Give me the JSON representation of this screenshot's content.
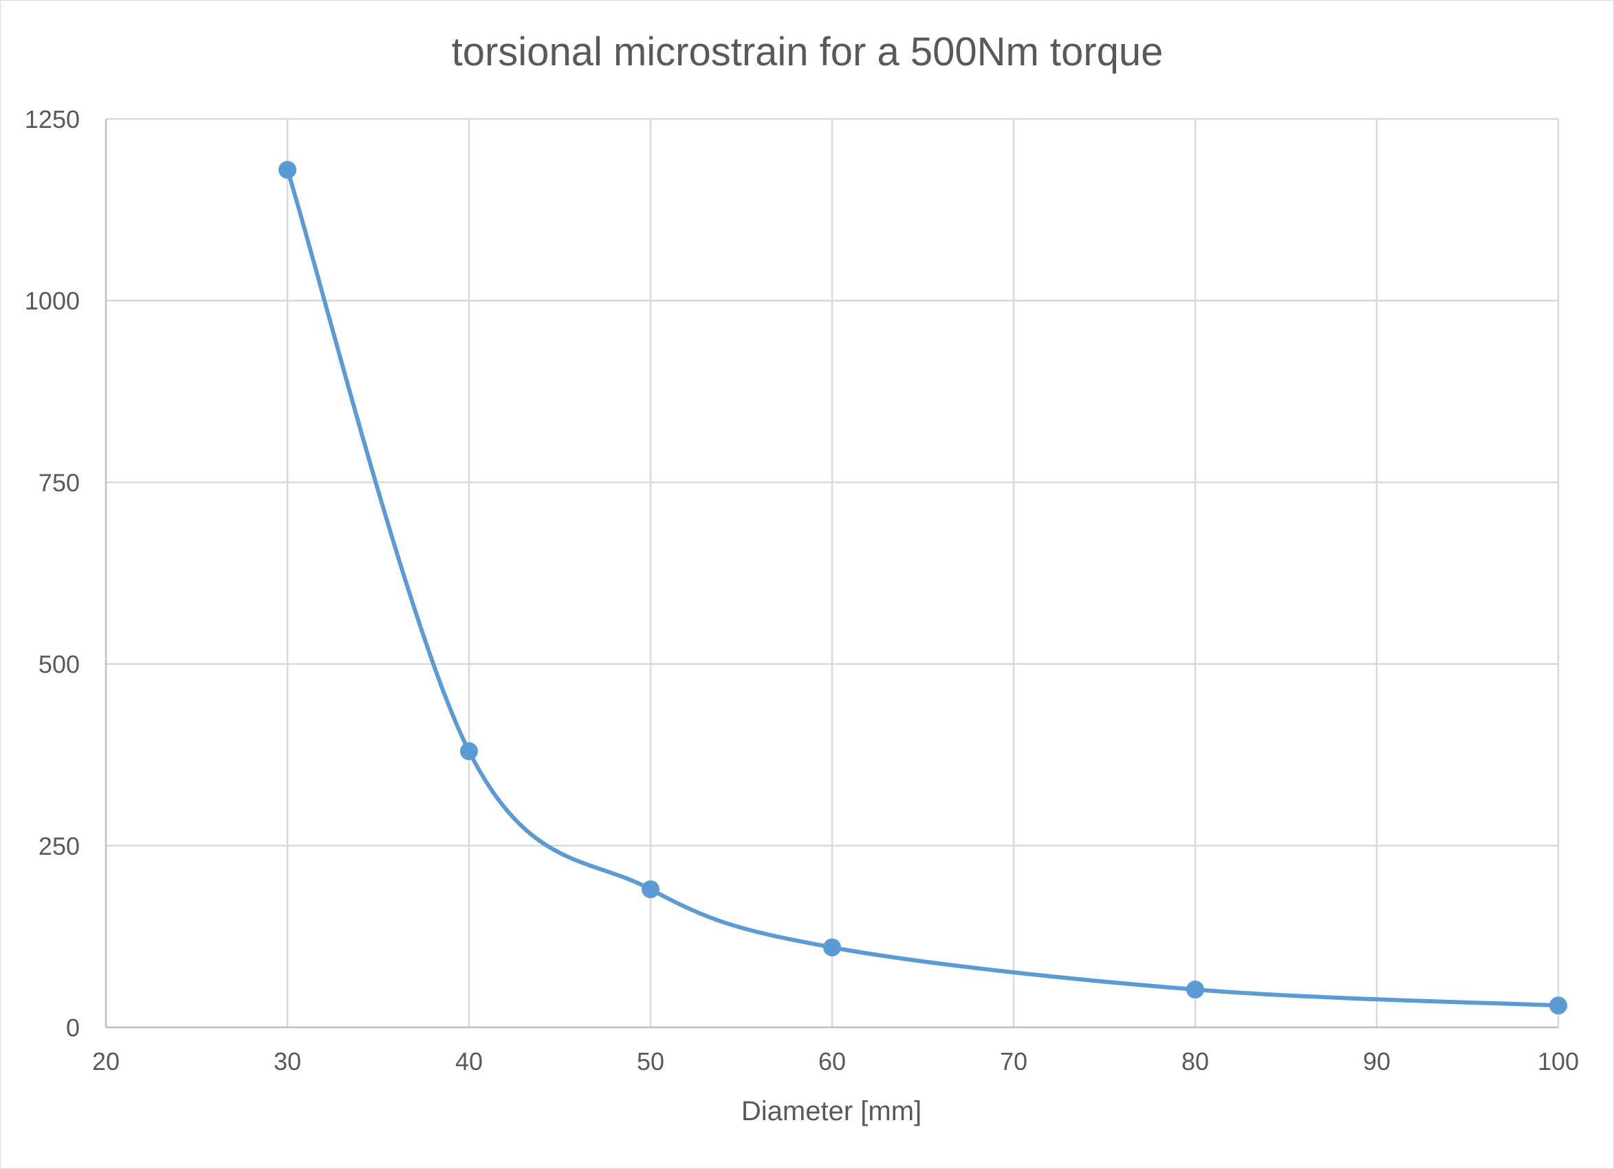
{
  "chart_data": {
    "type": "scatter",
    "title": "torsional microstrain for a 500Nm torque",
    "xlabel": "Diameter [mm]",
    "ylabel": "",
    "xlim": [
      20,
      100
    ],
    "ylim": [
      0,
      1250
    ],
    "xticks": [
      20,
      30,
      40,
      50,
      60,
      70,
      80,
      90,
      100
    ],
    "yticks": [
      0,
      250,
      500,
      750,
      1000,
      1250
    ],
    "grid": true,
    "legend": "none",
    "series": [
      {
        "name": "torsional microstrain",
        "color": "#5b9bd5",
        "smooth": true,
        "x": [
          30,
          40,
          50,
          60,
          80,
          100
        ],
        "y": [
          1180,
          380,
          190,
          110,
          52,
          30
        ]
      }
    ]
  }
}
